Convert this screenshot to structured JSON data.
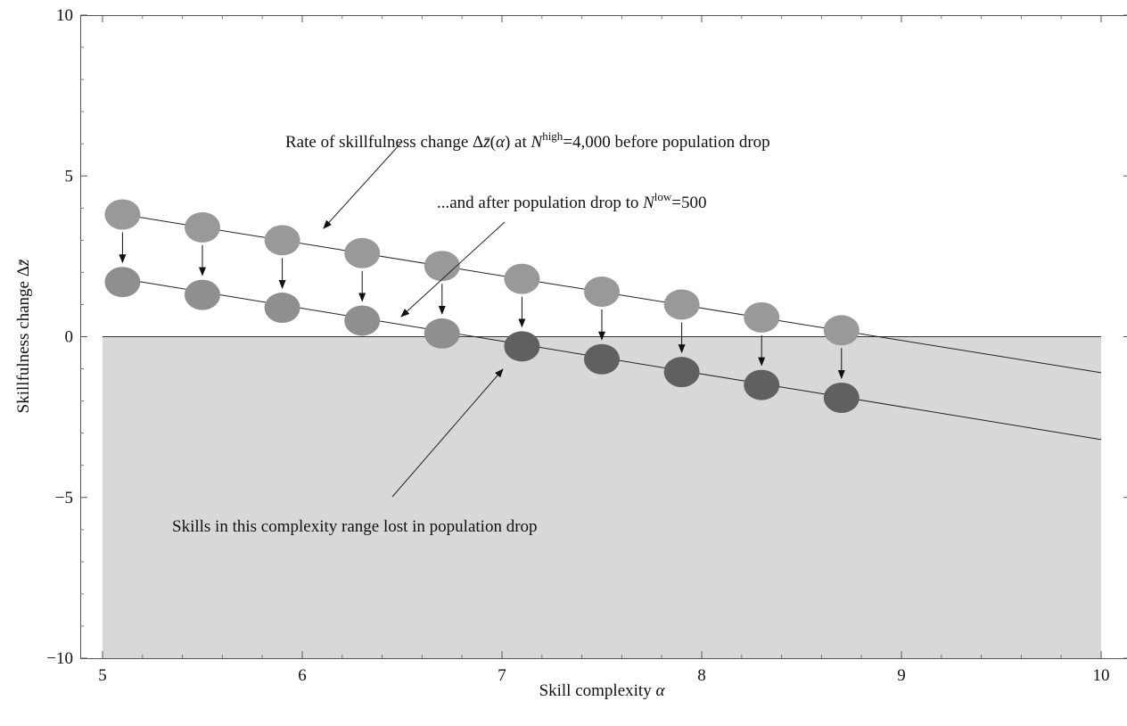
{
  "chart_data": {
    "type": "scatter",
    "xlabel_text": "Skill complexity ",
    "xlabel_symbol": "α",
    "ylabel_text": "Skillfulness change Δ",
    "ylabel_symbol": "z̄",
    "xlim": [
      5,
      10
    ],
    "ylim": [
      -10,
      10
    ],
    "x_ticks": [
      "5",
      "6",
      "7",
      "8",
      "9",
      "10"
    ],
    "y_ticks": [
      "−10",
      "−5",
      "0",
      "5",
      "10"
    ],
    "x_tick_values": [
      5,
      6,
      7,
      8,
      9,
      10
    ],
    "y_tick_values": [
      -10,
      -5,
      0,
      5,
      10
    ],
    "grid": false,
    "shaded_region": {
      "y_from": -10,
      "y_to": 0,
      "x_from": 5,
      "x_to": 10,
      "color": "#d8d8d8"
    },
    "lines": [
      {
        "name": "high",
        "x": [
          5.1,
          10.0
        ],
        "y": [
          3.8,
          -1.12
        ]
      },
      {
        "name": "low",
        "x": [
          5.1,
          10.0
        ],
        "y": [
          1.8,
          -3.2
        ]
      }
    ],
    "series": [
      {
        "name": "high",
        "x": [
          5.1,
          5.5,
          5.9,
          6.3,
          6.7,
          7.1,
          7.5,
          7.9,
          8.3,
          8.7
        ],
        "y": [
          3.8,
          3.4,
          3.0,
          2.6,
          2.2,
          1.8,
          1.4,
          1.0,
          0.6,
          0.2
        ],
        "color": "#999999"
      },
      {
        "name": "low",
        "x": [
          5.1,
          5.5,
          5.9,
          6.3,
          6.7,
          7.1,
          7.5,
          7.9,
          8.3,
          8.7
        ],
        "y": [
          1.7,
          1.3,
          0.9,
          0.5,
          0.1,
          -0.3,
          -0.7,
          -1.1,
          -1.5,
          -1.9
        ],
        "color_positive": "#8f8f8f",
        "color_negative": "#606060"
      }
    ],
    "annotations": {
      "high": {
        "prefix": "Rate of skillfulness change Δ",
        "zbar": "z̄",
        "paren_open": "(",
        "alpha": "α",
        "paren_close": ") at ",
        "N": "N",
        "sup": "high",
        "suffix": "=4,000 before population drop"
      },
      "low": {
        "prefix": "...and after population drop to ",
        "N": "N",
        "sup": "low",
        "suffix": "=500"
      },
      "lost": {
        "text": "Skills in this complexity range lost in population drop"
      }
    }
  }
}
